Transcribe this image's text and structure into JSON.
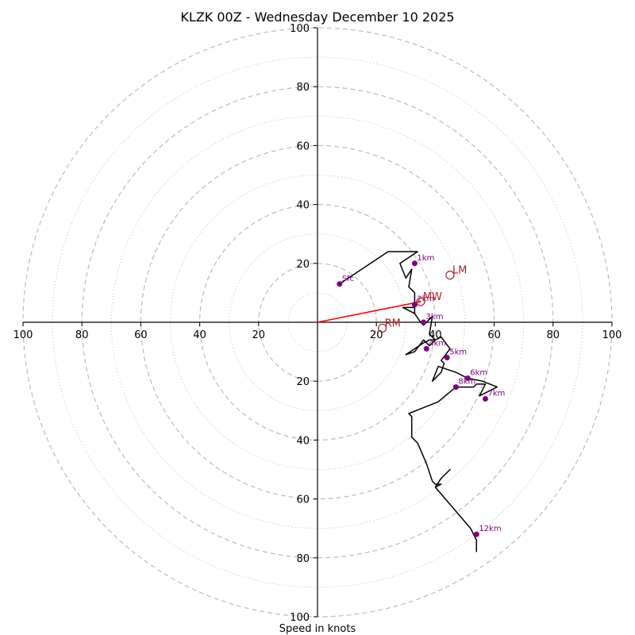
{
  "chart_data": {
    "type": "hodograph",
    "title": "KLZK 00Z - Wednesday December 10 2025",
    "xlabel": "Speed in knots",
    "units": "knots",
    "range": [
      -100,
      100
    ],
    "major_rings": [
      20,
      40,
      60,
      80,
      100
    ],
    "minor_rings": [
      10,
      30,
      50,
      70,
      90
    ],
    "tick_labels": {
      "x": [
        "100",
        "80",
        "60",
        "40",
        "20",
        "20",
        "40",
        "60",
        "80",
        "100"
      ],
      "x_values": [
        -100,
        -80,
        -60,
        -40,
        -20,
        20,
        40,
        60,
        80,
        100
      ],
      "y": [
        "100",
        "80",
        "60",
        "40",
        "20",
        "20",
        "40",
        "60",
        "80",
        "100"
      ],
      "y_values": [
        100,
        80,
        60,
        40,
        20,
        -20,
        -40,
        -60,
        -80,
        -100
      ]
    },
    "trace": [
      [
        7.5,
        13
      ],
      [
        24,
        24
      ],
      [
        34,
        24
      ],
      [
        28,
        20
      ],
      [
        30,
        15
      ],
      [
        32,
        18
      ],
      [
        31,
        12
      ],
      [
        33,
        10
      ],
      [
        33,
        3
      ],
      [
        29,
        5
      ],
      [
        33,
        5
      ],
      [
        33,
        3
      ],
      [
        35,
        0
      ],
      [
        36,
        -1
      ],
      [
        39,
        2
      ],
      [
        38,
        -4
      ],
      [
        40,
        -6
      ],
      [
        38,
        -8
      ],
      [
        36,
        -6
      ],
      [
        33,
        -10
      ],
      [
        30,
        -11
      ],
      [
        36,
        -7
      ],
      [
        38,
        -6
      ],
      [
        40,
        -6
      ],
      [
        42,
        -5
      ],
      [
        45,
        -9
      ],
      [
        42,
        -13
      ],
      [
        43,
        -14
      ],
      [
        42,
        -17
      ],
      [
        39,
        -20
      ],
      [
        41,
        -15
      ],
      [
        47,
        -17
      ],
      [
        51,
        -19
      ],
      [
        56,
        -20
      ],
      [
        61,
        -22
      ],
      [
        55,
        -25
      ],
      [
        57,
        -21
      ],
      [
        54,
        -21
      ],
      [
        53,
        -22
      ],
      [
        47,
        -22
      ],
      [
        41,
        -27
      ],
      [
        36,
        -29
      ],
      [
        31,
        -31
      ],
      [
        32,
        -32
      ],
      [
        32,
        -39
      ],
      [
        34,
        -41
      ],
      [
        37,
        -48
      ],
      [
        38,
        -51
      ],
      [
        39,
        -54
      ],
      [
        40,
        -55
      ],
      [
        42,
        -55
      ],
      [
        40,
        -56
      ],
      [
        42,
        -53
      ],
      [
        45,
        -50
      ],
      [
        42,
        -53
      ],
      [
        40,
        -56
      ],
      [
        52,
        -70
      ],
      [
        54,
        -74
      ],
      [
        54,
        -75
      ],
      [
        54,
        -78
      ]
    ],
    "height_markers": [
      {
        "label": "Sfc",
        "u": 7.5,
        "v": 13
      },
      {
        "label": "1km",
        "u": 33,
        "v": 20
      },
      {
        "label": "2km",
        "u": 33,
        "v": 6
      },
      {
        "label": "3km",
        "u": 36,
        "v": 0
      },
      {
        "label": "4km",
        "u": 37,
        "v": -9
      },
      {
        "label": "5km",
        "u": 44,
        "v": -12
      },
      {
        "label": "6km",
        "u": 51,
        "v": -19
      },
      {
        "label": "7km",
        "u": 57,
        "v": -26
      },
      {
        "label": "8km",
        "u": 47,
        "v": -22
      },
      {
        "label": "12km",
        "u": 54,
        "v": -72
      }
    ],
    "storm_motion": [
      {
        "label": "LM",
        "u": 45,
        "v": 16
      },
      {
        "label": "MW",
        "u": 35,
        "v": 7
      },
      {
        "label": "RM",
        "u": 22,
        "v": -2
      }
    ],
    "shear_vector": {
      "from": [
        0,
        0
      ],
      "to": [
        35,
        7
      ]
    },
    "colors": {
      "trace": "#000000",
      "markers": "#800080",
      "storm_motion": "#b22222",
      "shear": "#ff0000",
      "rings": "#bbbbbb"
    }
  }
}
